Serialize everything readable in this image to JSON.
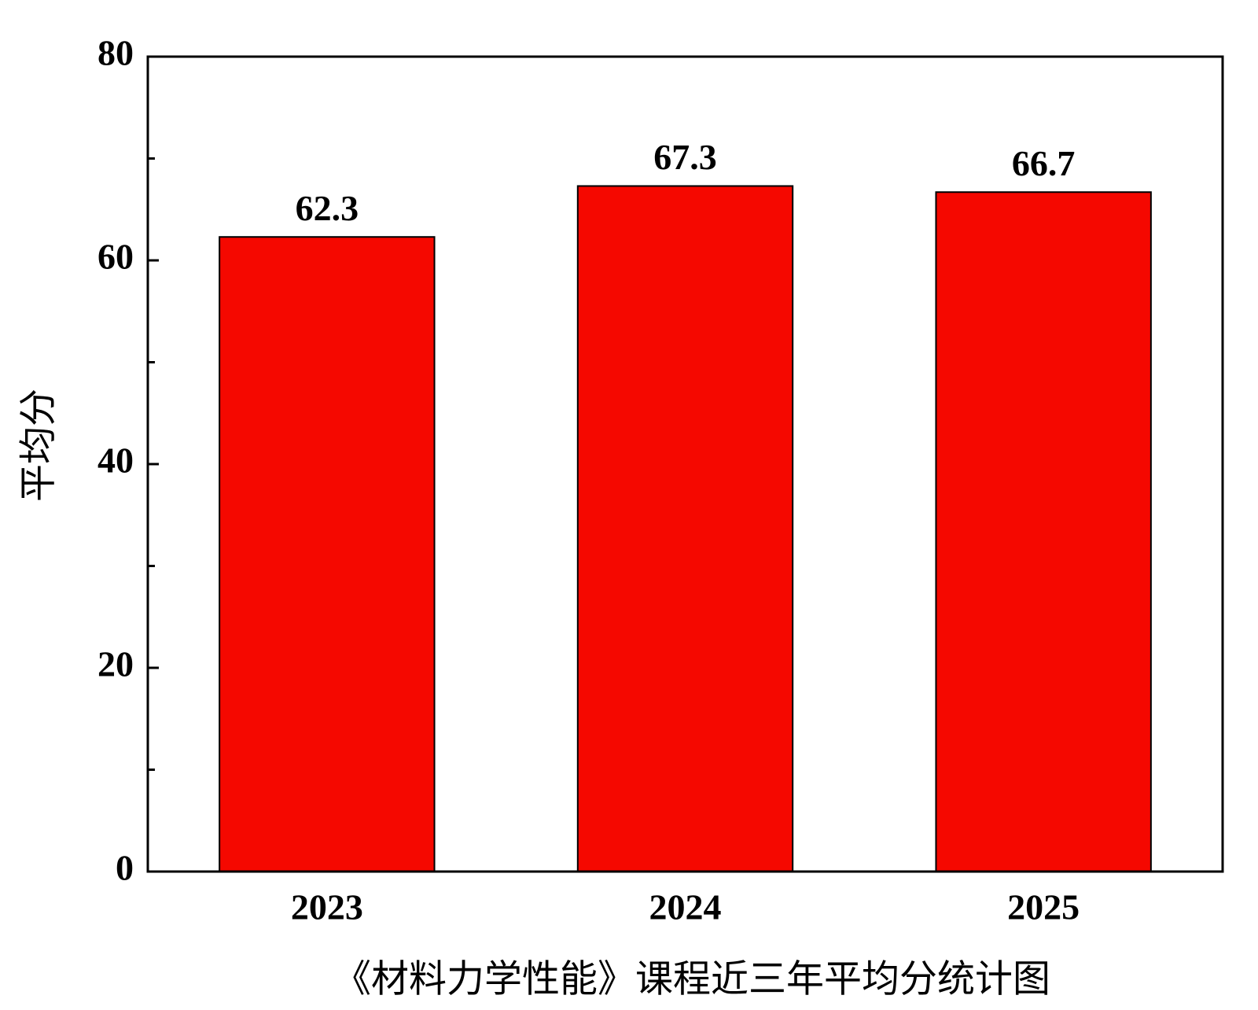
{
  "chart_data": {
    "type": "bar",
    "xlabel": "《材料力学性能》课程近三年平均分统计图",
    "ylabel": "平均分",
    "categories": [
      "2023",
      "2024",
      "2025"
    ],
    "values": [
      62.3,
      67.3,
      66.7
    ],
    "value_labels": [
      "62.3",
      "67.3",
      "66.7"
    ],
    "color": "#f50800",
    "ylim": [
      0,
      80
    ],
    "yticks": [
      0,
      20,
      40,
      60,
      80
    ],
    "minor_yticks": [
      10,
      30,
      50,
      70
    ]
  }
}
